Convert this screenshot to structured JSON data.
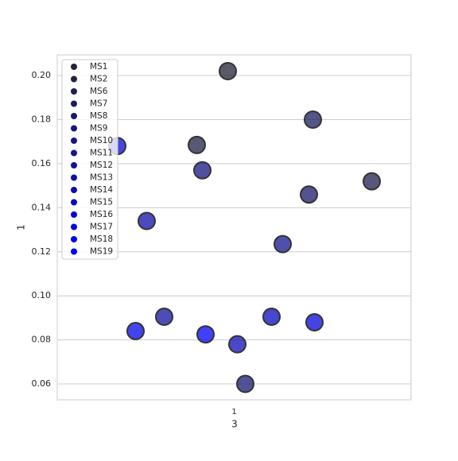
{
  "chart_data": {
    "type": "scatter",
    "xlabel": "3",
    "ylabel": "1",
    "categories": [
      "1"
    ],
    "ylim": [
      0.0528,
      0.2094
    ],
    "yticks": [
      0.06,
      0.08,
      0.1,
      0.12,
      0.14,
      0.16,
      0.18,
      0.2
    ],
    "ytick_labels": [
      "0.06",
      "0.08",
      "0.10",
      "0.12",
      "0.14",
      "0.16",
      "0.18",
      "0.20"
    ],
    "grid": true,
    "legend": "upper left",
    "series": [
      {
        "name": "MS1",
        "color": "#232337",
        "values": [
          0.202
        ]
      },
      {
        "name": "MS2",
        "color": "#212144",
        "values": [
          0.1685
        ]
      },
      {
        "name": "MS6",
        "color": "#1f1f50",
        "values": [
          0.152
        ]
      },
      {
        "name": "MS7",
        "color": "#1c1c5d",
        "values": [
          0.18
        ]
      },
      {
        "name": "MS8",
        "color": "#1a1a6a",
        "values": [
          0.146
        ]
      },
      {
        "name": "MS9",
        "color": "#181877",
        "values": [
          0.06
        ]
      },
      {
        "name": "MS10",
        "color": "#161683",
        "values": [
          0.157
        ]
      },
      {
        "name": "MS11",
        "color": "#141490",
        "values": [
          0.1235
        ]
      },
      {
        "name": "MS12",
        "color": "#11119d",
        "values": [
          0.0905
        ]
      },
      {
        "name": "MS13",
        "color": "#0f0faa",
        "values": [
          0.134
        ]
      },
      {
        "name": "MS14",
        "color": "#0d0db6",
        "values": [
          0.078
        ]
      },
      {
        "name": "MS15",
        "color": "#0a0ac3",
        "values": [
          0.0905
        ]
      },
      {
        "name": "MS16",
        "color": "#0808d0",
        "values": [
          0.168
        ]
      },
      {
        "name": "MS17",
        "color": "#0606dd",
        "values": [
          0.088
        ]
      },
      {
        "name": "MS18",
        "color": "#0404e9",
        "values": [
          0.084
        ]
      },
      {
        "name": "MS19",
        "color": "#0000ff",
        "values": [
          0.0825
        ]
      }
    ]
  }
}
